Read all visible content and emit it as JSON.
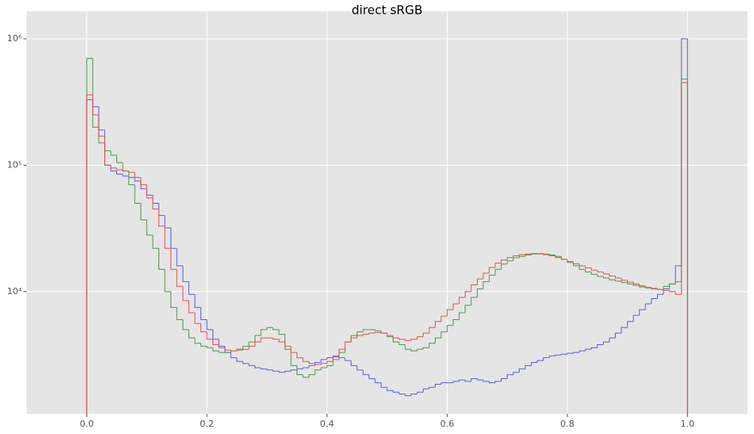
{
  "chart_data": {
    "type": "histogram",
    "title": "direct sRGB",
    "bins": [
      0,
      0.01,
      0.02,
      0.03,
      0.04,
      0.05,
      0.06,
      0.07,
      0.08,
      0.09,
      0.1,
      0.11,
      0.12,
      0.13,
      0.14,
      0.15,
      0.16,
      0.17,
      0.18,
      0.19,
      0.2,
      0.21,
      0.22,
      0.23,
      0.24,
      0.25,
      0.26,
      0.27,
      0.28,
      0.29,
      0.3,
      0.31,
      0.32,
      0.33,
      0.34,
      0.35,
      0.36,
      0.37,
      0.38,
      0.39,
      0.4,
      0.41,
      0.42,
      0.43,
      0.44,
      0.45,
      0.46,
      0.47,
      0.48,
      0.49,
      0.5,
      0.51,
      0.52,
      0.53,
      0.54,
      0.55,
      0.56,
      0.57,
      0.58,
      0.59,
      0.6,
      0.61,
      0.62,
      0.63,
      0.64,
      0.65,
      0.66,
      0.67,
      0.68,
      0.69,
      0.7,
      0.71,
      0.72,
      0.73,
      0.74,
      0.75,
      0.76,
      0.77,
      0.78,
      0.79,
      0.8,
      0.81,
      0.82,
      0.83,
      0.84,
      0.85,
      0.86,
      0.87,
      0.88,
      0.89,
      0.9,
      0.91,
      0.92,
      0.93,
      0.94,
      0.95,
      0.96,
      0.97,
      0.98,
      0.99,
      1
    ],
    "series": [
      {
        "color": "#5c5cf2",
        "values": [
          330000,
          290000,
          190000,
          100000,
          90000,
          85000,
          82000,
          80000,
          75000,
          65000,
          58000,
          50000,
          40000,
          32000,
          22000,
          16000,
          12000,
          9500,
          7500,
          6000,
          5000,
          4200,
          3700,
          3300,
          3000,
          2800,
          2700,
          2600,
          2500,
          2450,
          2400,
          2350,
          2300,
          2350,
          2400,
          2450,
          2500,
          2600,
          2750,
          2900,
          3000,
          3050,
          3000,
          2850,
          2600,
          2400,
          2200,
          2050,
          1900,
          1750,
          1650,
          1600,
          1550,
          1500,
          1550,
          1600,
          1700,
          1750,
          1850,
          1900,
          1900,
          1950,
          2000,
          1950,
          2050,
          2000,
          1950,
          1900,
          1950,
          2050,
          2200,
          2300,
          2450,
          2600,
          2750,
          2850,
          3000,
          3100,
          3150,
          3200,
          3250,
          3300,
          3400,
          3500,
          3600,
          3800,
          4000,
          4300,
          4700,
          5200,
          5800,
          6500,
          7200,
          8000,
          8800,
          9500,
          10500,
          11500,
          16000,
          1000000
        ]
      },
      {
        "color": "#4f9a4f",
        "values": [
          700000,
          200000,
          150000,
          130000,
          120000,
          105000,
          90000,
          70000,
          50000,
          37000,
          28000,
          22000,
          15000,
          10000,
          7500,
          6000,
          5000,
          4300,
          3900,
          3700,
          3600,
          3400,
          3300,
          3300,
          3400,
          3500,
          3700,
          4000,
          4500,
          5000,
          5200,
          5000,
          4600,
          3500,
          2600,
          2200,
          2100,
          2200,
          2400,
          2500,
          2600,
          2900,
          3300,
          4000,
          4500,
          4800,
          5000,
          5000,
          4900,
          4700,
          4400,
          4000,
          3800,
          3500,
          3400,
          3500,
          3600,
          3900,
          4300,
          4800,
          5400,
          6000,
          6800,
          7800,
          9000,
          10500,
          12000,
          13500,
          15000,
          16500,
          17500,
          18500,
          19000,
          19500,
          19800,
          20000,
          19800,
          19500,
          19000,
          18000,
          17000,
          16000,
          15000,
          14300,
          13700,
          13200,
          12800,
          12400,
          12100,
          11800,
          11500,
          11200,
          10900,
          10700,
          10500,
          10400,
          11000,
          11500,
          12000,
          480000
        ]
      },
      {
        "color": "#e85050",
        "values": [
          360000,
          250000,
          170000,
          100000,
          95000,
          92000,
          90000,
          88000,
          80000,
          70000,
          55000,
          45000,
          33000,
          22000,
          15000,
          11000,
          8500,
          6800,
          5600,
          4800,
          4200,
          3800,
          3600,
          3450,
          3400,
          3450,
          3500,
          3700,
          4000,
          4300,
          4300,
          4200,
          4000,
          3700,
          3300,
          3000,
          2800,
          2700,
          2650,
          2700,
          2800,
          3100,
          3500,
          4000,
          4300,
          4500,
          4600,
          4700,
          4750,
          4700,
          4500,
          4300,
          4200,
          4100,
          4200,
          4400,
          4700,
          5200,
          5800,
          6400,
          7200,
          8000,
          9000,
          10000,
          11300,
          12600,
          14000,
          15500,
          16800,
          17800,
          18600,
          19200,
          19600,
          19800,
          20000,
          19900,
          19600,
          19200,
          18600,
          18000,
          17300,
          16600,
          16000,
          15400,
          14800,
          14300,
          13800,
          13300,
          12800,
          12300,
          11900,
          11500,
          11100,
          10800,
          10600,
          10400,
          10200,
          10000,
          9500,
          450000
        ]
      }
    ],
    "xlim": [
      -0.1,
      1.1
    ],
    "xticks": [
      {
        "value": 0,
        "label": "0.0"
      },
      0.2,
      0.4,
      0.6,
      0.8,
      {
        "value": 1,
        "label": "1.0"
      }
    ],
    "ylim": [
      1080,
      1650000
    ],
    "yscale": "log",
    "yticks": [
      {
        "value": 10000,
        "label": "10⁴"
      },
      {
        "value": 100000,
        "label": "10⁵"
      },
      {
        "value": 1000000,
        "label": "10⁶"
      }
    ],
    "grid": true
  }
}
